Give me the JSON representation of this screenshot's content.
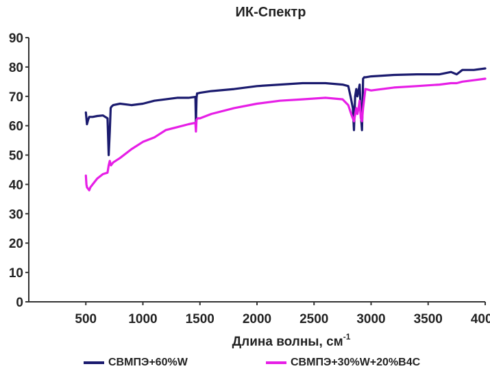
{
  "chart_data": {
    "type": "line",
    "title": "ИК-Спектр",
    "xlabel": "Длина волны, см",
    "xlabel_sup": "-1",
    "ylabel": "",
    "xlim": [
      0,
      4000
    ],
    "ylim": [
      0,
      90
    ],
    "x_ticks": [
      500,
      1000,
      1500,
      2000,
      2500,
      3000,
      3500,
      4000
    ],
    "x_tick_labels": [
      "500",
      "1000",
      "1500",
      "2000",
      "2500",
      "3000",
      "3500",
      "4000"
    ],
    "y_ticks": [
      0,
      10,
      20,
      30,
      40,
      50,
      60,
      70,
      80,
      90
    ],
    "y_tick_labels": [
      "0",
      "10",
      "20",
      "30",
      "40",
      "50",
      "60",
      "70",
      "80",
      "90"
    ],
    "grid": false,
    "legend_position": "bottom",
    "series": [
      {
        "name": "СВМПЭ+60%W",
        "color": "#1a1a6e",
        "x": [
          500,
          510,
          520,
          530,
          560,
          600,
          650,
          690,
          700,
          710,
          718,
          725,
          740,
          800,
          900,
          1000,
          1100,
          1200,
          1300,
          1400,
          1460,
          1465,
          1470,
          1475,
          1480,
          1500,
          1600,
          1800,
          2000,
          2200,
          2400,
          2600,
          2750,
          2800,
          2820,
          2840,
          2850,
          2860,
          2870,
          2880,
          2890,
          2900,
          2910,
          2920,
          2925,
          2930,
          2940,
          2950,
          3000,
          3200,
          3400,
          3600,
          3700,
          3750,
          3800,
          3900,
          4000
        ],
        "y": [
          64.5,
          60.5,
          62.0,
          63.0,
          63.0,
          63.3,
          63.5,
          62.5,
          50.0,
          58.0,
          66.0,
          66.5,
          67.0,
          67.5,
          67.0,
          67.5,
          68.5,
          69.0,
          69.5,
          69.5,
          69.8,
          61.0,
          69.5,
          71.0,
          71.0,
          71.2,
          71.8,
          72.5,
          73.5,
          74.0,
          74.5,
          74.5,
          74.0,
          73.5,
          70.0,
          66.0,
          58.5,
          70.0,
          72.5,
          70.0,
          72.0,
          74.0,
          64.0,
          58.5,
          66.0,
          76.0,
          76.5,
          76.5,
          76.8,
          77.3,
          77.5,
          77.5,
          78.3,
          77.5,
          79.0,
          79.0,
          79.5
        ]
      },
      {
        "name": "СВМПЭ+30%W+20%B4C",
        "color": "#e61ee6",
        "x": [
          500,
          505,
          510,
          520,
          530,
          540,
          560,
          600,
          650,
          690,
          700,
          710,
          720,
          740,
          800,
          900,
          1000,
          1100,
          1200,
          1300,
          1400,
          1460,
          1465,
          1470,
          1480,
          1500,
          1600,
          1800,
          2000,
          2200,
          2400,
          2600,
          2750,
          2800,
          2830,
          2850,
          2870,
          2880,
          2890,
          2900,
          2910,
          2920,
          2930,
          2950,
          3000,
          3200,
          3400,
          3600,
          3700,
          3750,
          3800,
          3900,
          4000
        ],
        "y": [
          43.0,
          40.0,
          39.0,
          38.5,
          38.0,
          39.0,
          40.0,
          42.0,
          43.5,
          44.0,
          46.5,
          48.0,
          46.5,
          47.5,
          49.0,
          52.0,
          54.5,
          56.0,
          58.5,
          59.5,
          60.5,
          61.0,
          58.0,
          62.0,
          62.5,
          62.5,
          64.0,
          66.0,
          67.5,
          68.5,
          69.0,
          69.5,
          69.0,
          67.0,
          63.5,
          61.5,
          66.0,
          64.0,
          66.0,
          68.5,
          62.5,
          61.5,
          66.0,
          72.5,
          72.0,
          73.0,
          73.5,
          74.0,
          74.5,
          74.5,
          75.0,
          75.5,
          76.0
        ]
      }
    ]
  }
}
